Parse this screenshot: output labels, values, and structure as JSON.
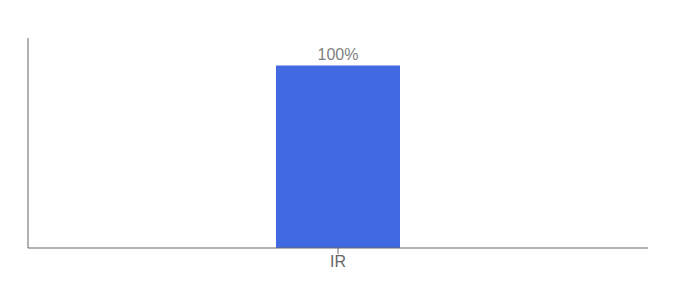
{
  "chart_data": {
    "type": "bar",
    "categories": [
      "IR"
    ],
    "values": [
      100
    ],
    "value_labels": [
      "100%"
    ],
    "color": "#4169e1",
    "ylim": [
      0,
      115
    ],
    "grid": false,
    "data_labels": true,
    "tick_labels": "x"
  }
}
